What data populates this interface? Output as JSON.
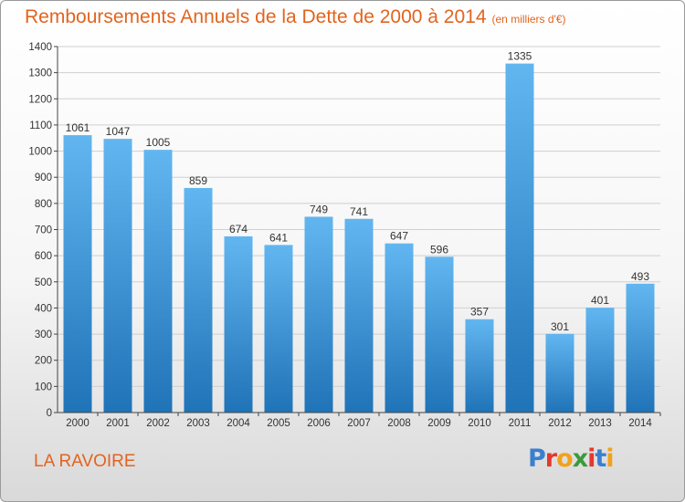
{
  "title": "Remboursements Annuels de la Dette de 2000 à 2014",
  "subtitle": "(en milliers d'€)",
  "place": "LA RAVOIRE",
  "logo": {
    "text": "Proxiti",
    "letter_colors": [
      "#3a7fd0",
      "#e6372e",
      "#f1a21b",
      "#3a9a3a",
      "#e6372e",
      "#3a7fd0",
      "#f1a21b"
    ]
  },
  "colors": {
    "bar_light": "#62b6f0",
    "bar_dark": "#1f73b7",
    "title": "#e2641f",
    "axis": "#444444",
    "grid": "#cfcfcf"
  },
  "chart_data": {
    "type": "bar",
    "categories": [
      "2000",
      "2001",
      "2002",
      "2003",
      "2004",
      "2005",
      "2006",
      "2007",
      "2008",
      "2009",
      "2010",
      "2011",
      "2012",
      "2013",
      "2014"
    ],
    "values": [
      1061,
      1047,
      1005,
      859,
      674,
      641,
      749,
      741,
      647,
      596,
      357,
      1335,
      301,
      401,
      493
    ],
    "ylim": [
      0,
      1400
    ],
    "yticks": [
      0,
      100,
      200,
      300,
      400,
      500,
      600,
      700,
      800,
      900,
      1000,
      1100,
      1200,
      1300,
      1400
    ],
    "grid": true,
    "title": "Remboursements Annuels de la Dette de 2000 à 2014",
    "xlabel": "",
    "ylabel": ""
  }
}
